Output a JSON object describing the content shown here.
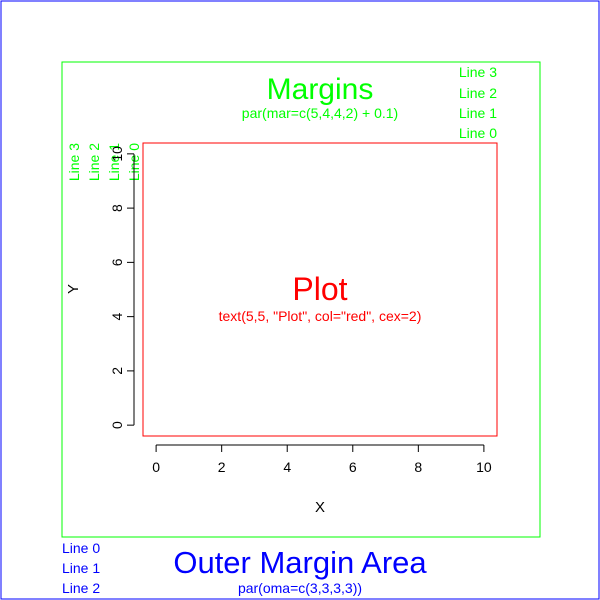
{
  "colors": {
    "outer_border": "#0000ff",
    "margin_border": "#00ff00",
    "plot_border": "#ff0000",
    "outer_text": "#0000ff",
    "margin_text": "#00ff00",
    "plot_text": "#ff0000",
    "axis": "#000000"
  },
  "margins": {
    "title": "Margins",
    "code": "par(mar=c(5,4,4,2) + 0.1)",
    "top_lines": [
      "Line 3",
      "Line 2",
      "Line 1",
      "Line 0"
    ],
    "left_lines": [
      "Line 3",
      "Line 2",
      "Line 1",
      "Line 0"
    ]
  },
  "plot": {
    "title": "Plot",
    "code": "text(5,5, \"Plot\", col=\"red\", cex=2)"
  },
  "outer": {
    "title": "Outer Margin Area",
    "code": "par(oma=c(3,3,3,3))",
    "bottom_lines": [
      "Line 0",
      "Line 1",
      "Line 2"
    ]
  },
  "chart_data": {
    "type": "scatter",
    "xlabel": "X",
    "ylabel": "Y",
    "xlim": [
      -0.4,
      10.4
    ],
    "ylim": [
      -0.4,
      10.4
    ],
    "x_ticks": [
      "0",
      "2",
      "4",
      "6",
      "8",
      "10"
    ],
    "y_ticks": [
      "0",
      "2",
      "4",
      "6",
      "8",
      "10"
    ],
    "grid": false,
    "series": []
  }
}
